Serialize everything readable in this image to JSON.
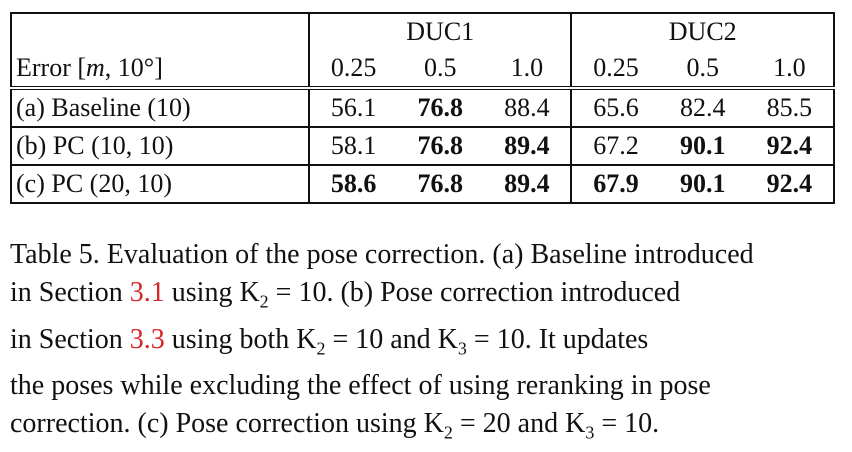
{
  "table": {
    "group_headers": [
      "DUC1",
      "DUC2"
    ],
    "row_header_label_prefix": "Error [",
    "row_header_label_m": "m",
    "row_header_label_suffix": ", 10°]",
    "subheaders": [
      "0.25",
      "0.5",
      "1.0",
      "0.25",
      "0.5",
      "1.0"
    ],
    "rows": [
      {
        "label": "(a) Baseline (10)",
        "values": [
          "56.1",
          "76.8",
          "88.4",
          "65.6",
          "82.4",
          "85.5"
        ],
        "bold": [
          false,
          true,
          false,
          false,
          false,
          false
        ]
      },
      {
        "label": "(b) PC (10, 10)",
        "values": [
          "58.1",
          "76.8",
          "89.4",
          "67.2",
          "90.1",
          "92.4"
        ],
        "bold": [
          false,
          true,
          true,
          false,
          true,
          true
        ]
      },
      {
        "label": "(c) PC (20, 10)",
        "values": [
          "58.6",
          "76.8",
          "89.4",
          "67.9",
          "90.1",
          "92.4"
        ],
        "bold": [
          true,
          true,
          true,
          true,
          true,
          true
        ]
      }
    ]
  },
  "caption": {
    "line1": "Table 5. Evaluation of the pose correction. (a) Baseline introduced",
    "line2_a": "in Section ",
    "line2_ref": "3.1",
    "line2_b": " using K",
    "line2_sub": "2",
    "line2_c": " = 10. (b) Pose correction introduced",
    "line3_a": "in Section ",
    "line3_ref": "3.3",
    "line3_b": " using both K",
    "line3_sub1": "2",
    "line3_c": " = 10 and K",
    "line3_sub2": "3",
    "line3_d": " = 10. It updates",
    "line4": "the poses while excluding the effect of using reranking in pose",
    "line5_a": "correction. (c) Pose correction using K",
    "line5_sub1": "2",
    "line5_b": " = 20 and K",
    "line5_sub2": "3",
    "line5_c": " = 10."
  }
}
